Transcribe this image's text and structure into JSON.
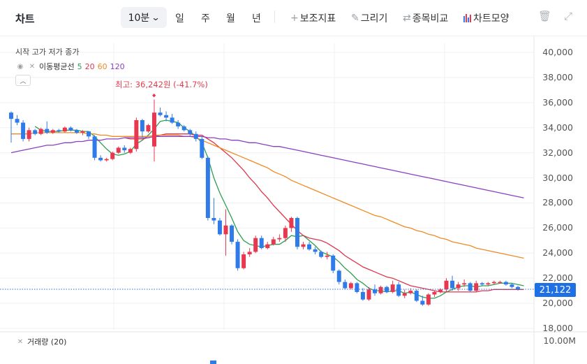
{
  "toolbar": {
    "title": "차트",
    "period": "10분",
    "tabs": [
      "일",
      "주",
      "월",
      "년"
    ],
    "tools": {
      "indicators": "보조지표",
      "draw": "그리기",
      "compare": "종목비교",
      "chart_style": "차트모양"
    },
    "icons": {
      "period": "chevron-down-icon",
      "indicators": "plus-icon",
      "draw": "pencil-icon",
      "compare": "swap-icon",
      "chart_style": "candle-bars-icon",
      "delete": "trash-icon",
      "expand": "expand-icon"
    }
  },
  "legend": {
    "ohlc_label": "시작 고가 저가 종가",
    "ma_label": "이동평균선",
    "ma_periods": [
      {
        "value": "5",
        "color": "#2e9e4f"
      },
      {
        "value": "20",
        "color": "#e0354a"
      },
      {
        "value": "60",
        "color": "#f08a24"
      },
      {
        "value": "120",
        "color": "#8a3fbf"
      }
    ],
    "collapse_icon": "chevron-up-icon"
  },
  "annotation": {
    "high_text": "최고: 36,242원 (-41.7%)"
  },
  "current_price": "21,122",
  "volume": {
    "label": "거래량 (20)",
    "axis_label": "10.00M"
  },
  "colors": {
    "up": "#e8384f",
    "down": "#2f7bea",
    "current_line": "#1f6fe5",
    "grid": "#eef0f3"
  },
  "chart_data": {
    "type": "candlestick",
    "y_axis_ticks": [
      "40,000",
      "38,000",
      "36,000",
      "34,000",
      "32,000",
      "30,000",
      "28,000",
      "26,000",
      "24,000",
      "22,000",
      "20,000",
      "18,000"
    ],
    "ylim": [
      18000,
      40000
    ],
    "current_price": 21122,
    "high": 36242,
    "candles": [
      [
        35200,
        35300,
        32800,
        34700
      ],
      [
        34700,
        35000,
        34200,
        34400
      ],
      [
        34400,
        34600,
        32900,
        33100
      ],
      [
        33100,
        34000,
        32900,
        33800
      ],
      [
        33800,
        33900,
        33400,
        33500
      ],
      [
        33500,
        34000,
        33400,
        33900
      ],
      [
        33900,
        34500,
        33500,
        33600
      ],
      [
        33600,
        33900,
        33500,
        33800
      ],
      [
        33800,
        33900,
        33600,
        33700
      ],
      [
        33700,
        34100,
        33600,
        34000
      ],
      [
        34000,
        34100,
        33700,
        33800
      ],
      [
        33800,
        33900,
        33500,
        33600
      ],
      [
        33600,
        33800,
        33400,
        33700
      ],
      [
        33700,
        33700,
        33100,
        33300
      ],
      [
        33300,
        33400,
        31400,
        31600
      ],
      [
        31600,
        31800,
        31300,
        31400
      ],
      [
        31400,
        31600,
        31300,
        31500
      ],
      [
        31500,
        32100,
        31400,
        32000
      ],
      [
        32000,
        32500,
        31900,
        32400
      ],
      [
        32400,
        32600,
        32000,
        32200
      ],
      [
        32000,
        32400,
        31900,
        32300
      ],
      [
        32300,
        34800,
        32100,
        34600
      ],
      [
        34600,
        34700,
        33200,
        33700
      ],
      [
        33700,
        34300,
        33600,
        34200
      ],
      [
        32500,
        36242,
        31300,
        35200
      ],
      [
        35200,
        35600,
        34900,
        35000
      ],
      [
        35000,
        35300,
        34500,
        34800
      ],
      [
        34800,
        35100,
        34300,
        34400
      ],
      [
        34400,
        34600,
        33900,
        34100
      ],
      [
        34100,
        34200,
        33700,
        33800
      ],
      [
        33800,
        33900,
        33300,
        33500
      ],
      [
        33500,
        33700,
        32900,
        33100
      ],
      [
        33100,
        33300,
        31500,
        31600
      ],
      [
        31600,
        31700,
        26600,
        26800
      ],
      [
        26800,
        28400,
        26300,
        26600
      ],
      [
        26600,
        26800,
        25400,
        25500
      ],
      [
        25500,
        27500,
        23800,
        26200
      ],
      [
        26200,
        26300,
        24700,
        24900
      ],
      [
        24900,
        25100,
        22600,
        22800
      ],
      [
        22800,
        24100,
        22700,
        23900
      ],
      [
        23900,
        24400,
        23700,
        24100
      ],
      [
        24100,
        25400,
        24000,
        25200
      ],
      [
        25200,
        25400,
        24300,
        24400
      ],
      [
        24400,
        24900,
        24300,
        24700
      ],
      [
        24700,
        25300,
        24600,
        25100
      ],
      [
        25100,
        25500,
        24900,
        25200
      ],
      [
        25200,
        26200,
        24900,
        26000
      ],
      [
        26000,
        26900,
        25700,
        26800
      ],
      [
        26800,
        26900,
        24300,
        24500
      ],
      [
        24500,
        24900,
        24300,
        24700
      ],
      [
        24700,
        24900,
        24200,
        24300
      ],
      [
        24300,
        24500,
        23900,
        24100
      ],
      [
        24100,
        24200,
        23600,
        23700
      ],
      [
        23700,
        24100,
        23500,
        23800
      ],
      [
        23800,
        23900,
        22400,
        22600
      ],
      [
        22600,
        22700,
        21500,
        21700
      ],
      [
        21700,
        21900,
        21100,
        21200
      ],
      [
        21200,
        21700,
        21100,
        21600
      ],
      [
        21600,
        21700,
        20800,
        20900
      ],
      [
        20900,
        21200,
        20200,
        20300
      ],
      [
        20300,
        21300,
        20200,
        21100
      ],
      [
        21100,
        21500,
        20600,
        20800
      ],
      [
        20800,
        21400,
        20700,
        21300
      ],
      [
        21300,
        21400,
        20800,
        20900
      ],
      [
        20900,
        21800,
        20800,
        21500
      ],
      [
        21500,
        21700,
        20500,
        20600
      ],
      [
        20600,
        21100,
        20400,
        20800
      ],
      [
        20800,
        21200,
        20700,
        21000
      ],
      [
        21000,
        21100,
        20100,
        20200
      ],
      [
        20200,
        20600,
        19800,
        19900
      ],
      [
        19900,
        20800,
        19800,
        20700
      ],
      [
        20700,
        21000,
        20500,
        20900
      ],
      [
        20900,
        21200,
        20800,
        21100
      ],
      [
        21100,
        22000,
        20900,
        21800
      ],
      [
        21800,
        22200,
        21000,
        21200
      ],
      [
        21200,
        21700,
        21000,
        21500
      ],
      [
        21500,
        21900,
        21300,
        21600
      ],
      [
        21600,
        21700,
        20900,
        21000
      ],
      [
        21000,
        21800,
        20900,
        21600
      ],
      [
        21600,
        21700,
        21400,
        21500
      ],
      [
        21500,
        21700,
        21400,
        21600
      ],
      [
        21600,
        21800,
        21500,
        21700
      ],
      [
        21700,
        21800,
        21600,
        21700
      ],
      [
        21700,
        21800,
        21400,
        21500
      ],
      [
        21500,
        21600,
        21200,
        21300
      ],
      [
        21300,
        21400,
        21000,
        21122
      ]
    ],
    "ma_series": [
      {
        "period": "5",
        "values": [
          null,
          null,
          null,
          null,
          34100,
          33800,
          33700,
          33700,
          33700,
          33800,
          33800,
          33800,
          33700,
          33700,
          33300,
          32800,
          32300,
          31900,
          31800,
          31900,
          32100,
          32700,
          33000,
          33400,
          33900,
          34500,
          34600,
          34500,
          34400,
          34000,
          33700,
          33300,
          32800,
          31600,
          30000,
          28800,
          27800,
          26800,
          25700,
          25000,
          24700,
          24600,
          24500,
          24600,
          24700,
          24700,
          25000,
          25400,
          25300,
          25400,
          25000,
          24600,
          24100,
          23900,
          23700,
          23300,
          22800,
          22400,
          21900,
          21600,
          21200,
          21000,
          21000,
          20900,
          21000,
          21000,
          20800,
          20900,
          20700,
          20500,
          20400,
          20400,
          20600,
          20900,
          21100,
          21300,
          21400,
          21400,
          21300,
          21400,
          21400,
          21500,
          21600,
          21600,
          21600,
          21500,
          21400
        ]
      },
      {
        "period": "20",
        "values": [
          null,
          null,
          null,
          null,
          null,
          null,
          null,
          null,
          null,
          null,
          null,
          null,
          null,
          null,
          null,
          null,
          null,
          null,
          null,
          33200,
          33100,
          33100,
          33100,
          33200,
          33300,
          33400,
          33500,
          33500,
          33500,
          33500,
          33500,
          33400,
          33400,
          33100,
          32800,
          32400,
          32000,
          31600,
          31100,
          30600,
          30000,
          29500,
          28900,
          28400,
          27800,
          27300,
          26800,
          26300,
          25800,
          25400,
          25200,
          25100,
          25000,
          24800,
          24500,
          24200,
          23800,
          23500,
          23200,
          22900,
          22700,
          22500,
          22300,
          22100,
          22000,
          21800,
          21600,
          21400,
          21300,
          21200,
          21100,
          21000,
          20900,
          20900,
          20900,
          20900,
          20900,
          20900,
          20900,
          21000,
          21000,
          21100,
          21100,
          21100,
          21100,
          21100,
          21100
        ]
      },
      {
        "period": "60",
        "values": [
          33500,
          33500,
          33500,
          33500,
          33600,
          33600,
          33600,
          33600,
          33600,
          33600,
          33600,
          33600,
          33600,
          33500,
          33500,
          33400,
          33400,
          33300,
          33300,
          33300,
          33300,
          33300,
          33300,
          33300,
          33400,
          33400,
          33400,
          33400,
          33400,
          33300,
          33300,
          33200,
          33000,
          32800,
          32600,
          32400,
          32200,
          32000,
          31800,
          31600,
          31400,
          31200,
          31000,
          30800,
          30500,
          30300,
          30100,
          29800,
          29600,
          29400,
          29200,
          29000,
          28800,
          28600,
          28400,
          28200,
          28000,
          27800,
          27600,
          27400,
          27200,
          27000,
          26900,
          26700,
          26500,
          26300,
          26100,
          26000,
          25800,
          25700,
          25500,
          25400,
          25200,
          25100,
          24900,
          24800,
          24700,
          24600,
          24400,
          24300,
          24200,
          24100,
          24000,
          23900,
          23800,
          23700,
          23600
        ]
      },
      {
        "period": "120",
        "values": [
          32000,
          32100,
          32200,
          32300,
          32400,
          32500,
          32600,
          32600,
          32700,
          32800,
          32800,
          32900,
          32900,
          33000,
          33000,
          33000,
          33100,
          33100,
          33100,
          33200,
          33200,
          33200,
          33200,
          33200,
          33300,
          33300,
          33300,
          33300,
          33300,
          33300,
          33300,
          33300,
          33300,
          33200,
          33200,
          33100,
          33100,
          33000,
          33000,
          32900,
          32800,
          32800,
          32700,
          32600,
          32500,
          32500,
          32400,
          32300,
          32200,
          32100,
          32000,
          31900,
          31800,
          31700,
          31600,
          31500,
          31400,
          31300,
          31200,
          31100,
          31000,
          30900,
          30800,
          30700,
          30600,
          30500,
          30400,
          30300,
          30200,
          30100,
          30000,
          29900,
          29800,
          29700,
          29600,
          29500,
          29400,
          29300,
          29200,
          29100,
          29000,
          28900,
          28800,
          28700,
          28600,
          28500,
          28400
        ]
      }
    ]
  }
}
